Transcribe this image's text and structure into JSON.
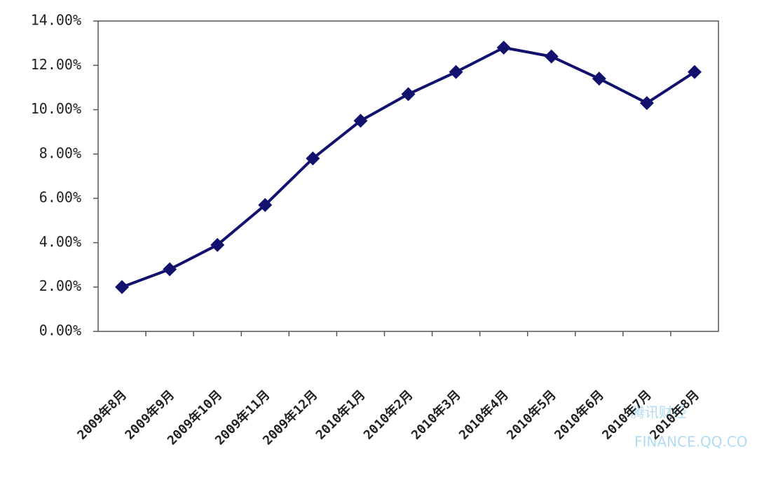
{
  "chart_data": {
    "type": "line",
    "categories": [
      "2009年8月",
      "2009年9月",
      "2009年10月",
      "2009年11月",
      "2009年12月",
      "2010年1月",
      "2010年2月",
      "2010年3月",
      "2010年4月",
      "2010年5月",
      "2010年6月",
      "2010年7月",
      "2010年8月"
    ],
    "series": [
      {
        "color": "#12126e",
        "values": [
          2.0,
          2.8,
          3.9,
          5.7,
          7.8,
          9.5,
          10.7,
          11.7,
          12.8,
          12.4,
          11.4,
          10.3,
          11.7
        ]
      }
    ],
    "ylim": [
      0,
      14
    ],
    "yticks": [
      {
        "value": 0,
        "label": "0.00%"
      },
      {
        "value": 2,
        "label": "2.00%"
      },
      {
        "value": 4,
        "label": "4.00%"
      },
      {
        "value": 6,
        "label": "6.00%"
      },
      {
        "value": 8,
        "label": "8.00%"
      },
      {
        "value": 10,
        "label": "10.00%"
      },
      {
        "value": 12,
        "label": "12.00%"
      },
      {
        "value": 14,
        "label": "14.00%"
      }
    ],
    "grid": false,
    "watermark": [
      "腾讯财经",
      "FINANCE.QQ.CO"
    ]
  }
}
